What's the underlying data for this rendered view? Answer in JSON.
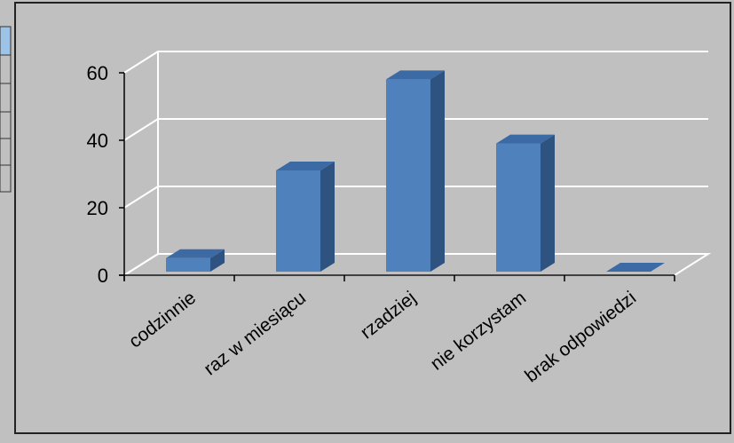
{
  "chart_data": {
    "type": "bar",
    "style": "3d-column",
    "categories": [
      "codzinnie",
      "raz w miesiącu",
      "rzadziej",
      "nie korzystam",
      "brak odpowiedzi"
    ],
    "values": [
      4,
      30,
      57,
      38,
      0
    ],
    "title": "",
    "xlabel": "",
    "ylabel": "",
    "ylim": [
      0,
      60
    ],
    "yticks": [
      "0",
      "20",
      "40",
      "60"
    ],
    "grid": true,
    "legend": "none",
    "colors": {
      "bar_front": "#4f81bd",
      "bar_side": "#2f5381",
      "bar_top": "#3b6aa4",
      "background": "#c0c0c0",
      "gridline": "#ffffff",
      "axis": "#000000"
    }
  }
}
